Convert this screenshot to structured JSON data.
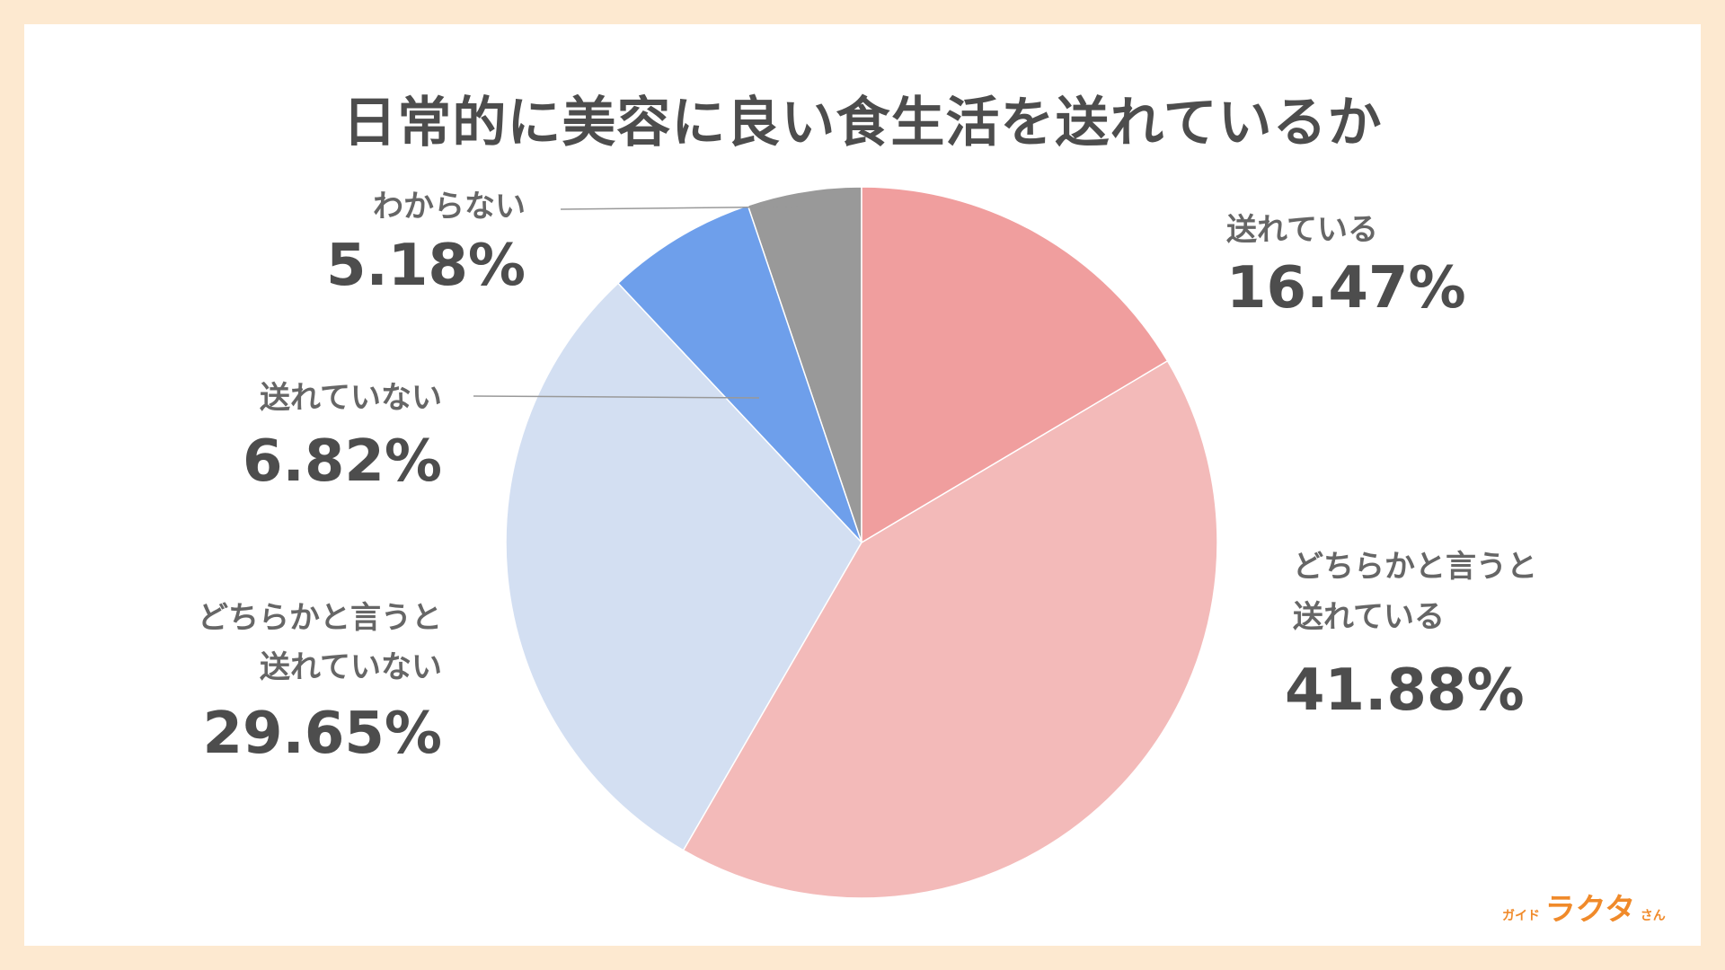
{
  "chart_data": {
    "type": "pie",
    "title": "日常的に美容に良い食生活を送れているか",
    "start": "top",
    "direction": "clockwise",
    "slices": [
      {
        "label": "送れている",
        "value": 16.47,
        "value_label": "16.47%",
        "color": "#f09e9e"
      },
      {
        "label": "どちらかと言うと送れている",
        "value": 41.88,
        "value_label": "41.88%",
        "color": "#f3bab9"
      },
      {
        "label": "どちらかと言うと送れていない",
        "value": 29.65,
        "value_label": "29.65%",
        "color": "#d3dff2"
      },
      {
        "label": "送れていない",
        "value": 6.82,
        "value_label": "6.82%",
        "color": "#6e9feb"
      },
      {
        "label": "わからない",
        "value": 5.18,
        "value_label": "5.18%",
        "color": "#999999"
      }
    ]
  },
  "labels": {
    "s0": [
      "送れている"
    ],
    "s1": [
      "どちらかと言うと",
      "送れている"
    ],
    "s2": [
      "どちらかと言うと",
      "送れていない"
    ],
    "s3": [
      "送れていない"
    ],
    "s4": [
      "わからない"
    ]
  },
  "logo": {
    "small": "ガイド",
    "big": "ラクタ",
    "tail": "さん"
  },
  "colors": {
    "background": "#fde9d0",
    "text": "#4d4d4d",
    "logo": "#f08a2a"
  }
}
